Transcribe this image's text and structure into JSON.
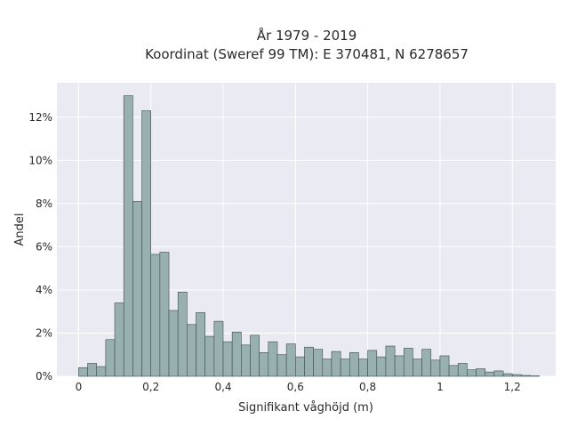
{
  "chart_data": {
    "type": "bar",
    "title": "År 1979 - 2019",
    "subtitle": "Koordinat (Sweref 99 TM): E 370481, N 6278657",
    "xlabel": "Signifikant våghöjd (m)",
    "ylabel": "Andel",
    "xlim": [
      -0.06,
      1.32
    ],
    "ylim": [
      0,
      13.6
    ],
    "grid": true,
    "bin_width": 0.025,
    "x_ticks": [
      0,
      0.2,
      0.4,
      0.6,
      0.8,
      1,
      1.2
    ],
    "x_tick_labels": [
      "0",
      "0,2",
      "0,4",
      "0,6",
      "0,8",
      "1",
      "1,2"
    ],
    "y_ticks": [
      0,
      2,
      4,
      6,
      8,
      10,
      12
    ],
    "y_tick_labels": [
      "0%",
      "2%",
      "4%",
      "6%",
      "8%",
      "10%",
      "12%"
    ],
    "bar_color": "#98b1b0",
    "bar_edge": "#3f4d4c",
    "bin_starts": [
      0.0,
      0.025,
      0.05,
      0.075,
      0.1,
      0.125,
      0.15,
      0.175,
      0.2,
      0.225,
      0.25,
      0.275,
      0.3,
      0.325,
      0.35,
      0.375,
      0.4,
      0.425,
      0.45,
      0.475,
      0.5,
      0.525,
      0.55,
      0.575,
      0.6,
      0.625,
      0.65,
      0.675,
      0.7,
      0.725,
      0.75,
      0.775,
      0.8,
      0.825,
      0.85,
      0.875,
      0.9,
      0.925,
      0.95,
      0.975,
      1.0,
      1.025,
      1.05,
      1.075,
      1.1,
      1.125,
      1.15,
      1.175,
      1.2,
      1.225,
      1.25
    ],
    "values": [
      0.4,
      0.6,
      0.45,
      1.7,
      3.4,
      13.0,
      8.1,
      12.3,
      5.65,
      5.75,
      3.05,
      3.9,
      2.4,
      2.95,
      1.85,
      2.55,
      1.6,
      2.05,
      1.45,
      1.9,
      1.1,
      1.6,
      1.0,
      1.5,
      0.9,
      1.35,
      1.25,
      0.8,
      1.15,
      0.8,
      1.1,
      0.8,
      1.2,
      0.9,
      1.4,
      0.95,
      1.3,
      0.8,
      1.25,
      0.75,
      0.95,
      0.5,
      0.6,
      0.3,
      0.35,
      0.2,
      0.25,
      0.12,
      0.08,
      0.04,
      0.02
    ]
  }
}
